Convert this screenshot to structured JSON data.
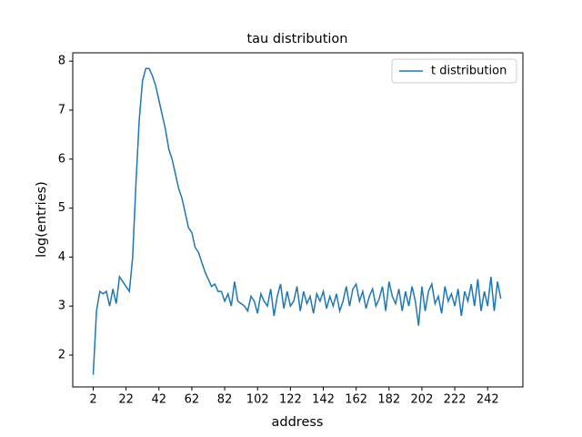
{
  "chart_data": {
    "type": "line",
    "title": "tau distribution",
    "x_label": "address",
    "y_label": "log(entries)",
    "x": [
      2,
      4,
      6,
      8,
      10,
      12,
      14,
      16,
      18,
      20,
      22,
      24,
      26,
      28,
      30,
      32,
      34,
      36,
      38,
      40,
      42,
      44,
      46,
      48,
      50,
      52,
      54,
      56,
      58,
      60,
      62,
      64,
      66,
      68,
      70,
      72,
      74,
      76,
      78,
      80,
      82,
      84,
      86,
      88,
      90,
      92,
      94,
      96,
      98,
      100,
      102,
      104,
      106,
      108,
      110,
      112,
      114,
      116,
      118,
      120,
      122,
      124,
      126,
      128,
      130,
      132,
      134,
      136,
      138,
      140,
      142,
      144,
      146,
      148,
      150,
      152,
      154,
      156,
      158,
      160,
      162,
      164,
      166,
      168,
      170,
      172,
      174,
      176,
      178,
      180,
      182,
      184,
      186,
      188,
      190,
      192,
      194,
      196,
      198,
      200,
      202,
      204,
      206,
      208,
      210,
      212,
      214,
      216,
      218,
      220,
      222,
      224,
      226,
      228,
      230,
      232,
      234,
      236,
      238,
      240,
      242,
      244,
      246,
      248,
      250
    ],
    "series": [
      {
        "name": "t distribution",
        "color": "#1f77b4",
        "values": [
          1.6,
          2.9,
          3.3,
          3.25,
          3.3,
          3.0,
          3.35,
          3.05,
          3.6,
          3.5,
          3.4,
          3.3,
          4.0,
          5.5,
          6.8,
          7.6,
          7.85,
          7.85,
          7.7,
          7.5,
          7.2,
          6.9,
          6.6,
          6.2,
          6.0,
          5.7,
          5.4,
          5.2,
          4.9,
          4.6,
          4.5,
          4.2,
          4.1,
          3.9,
          3.7,
          3.55,
          3.4,
          3.45,
          3.3,
          3.3,
          3.1,
          3.25,
          3.0,
          3.5,
          3.1,
          3.05,
          3.0,
          2.9,
          3.2,
          3.1,
          2.85,
          3.25,
          3.1,
          3.0,
          3.35,
          2.8,
          3.2,
          3.45,
          2.95,
          3.3,
          3.0,
          3.1,
          3.4,
          2.9,
          3.3,
          3.05,
          3.2,
          2.85,
          3.25,
          3.1,
          3.3,
          2.95,
          3.2,
          3.0,
          3.25,
          2.9,
          3.1,
          3.4,
          3.0,
          3.35,
          3.45,
          3.1,
          3.3,
          2.95,
          3.2,
          3.35,
          3.0,
          3.15,
          3.4,
          2.9,
          3.5,
          3.2,
          3.05,
          3.35,
          2.9,
          3.3,
          3.0,
          3.4,
          3.1,
          2.6,
          3.4,
          2.9,
          3.3,
          3.45,
          3.05,
          3.2,
          2.85,
          3.4,
          3.1,
          3.25,
          3.0,
          3.35,
          2.8,
          3.3,
          3.1,
          3.45,
          3.0,
          3.55,
          2.9,
          3.3,
          3.0,
          3.6,
          2.9,
          3.5,
          3.15
        ]
      }
    ],
    "xlim": [
      -10.45,
      263.45
    ],
    "ylim": [
      1.35,
      8.17
    ],
    "xticks": [
      2,
      22,
      42,
      62,
      82,
      102,
      122,
      142,
      162,
      182,
      202,
      222,
      242
    ],
    "yticks": [
      2,
      3,
      4,
      5,
      6,
      7,
      8
    ],
    "legend": "upper right"
  }
}
